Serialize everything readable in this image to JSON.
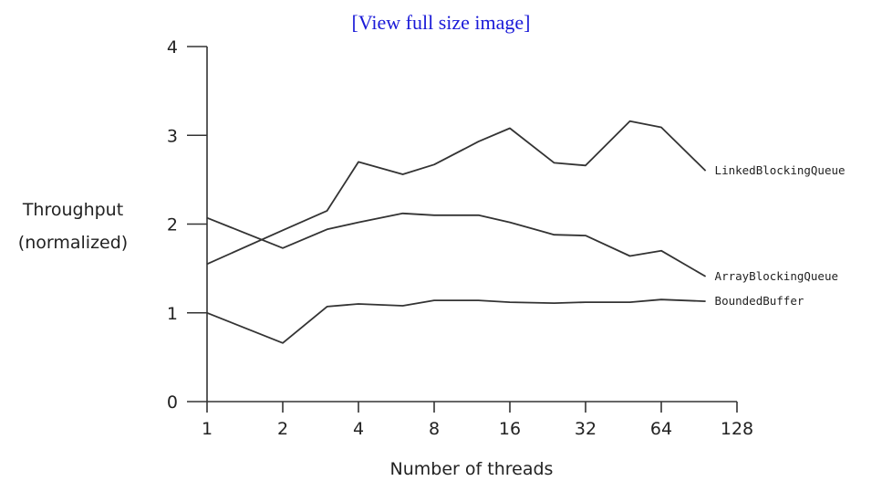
{
  "view_link": "[View full size image]",
  "chart_data": {
    "type": "line",
    "title": "",
    "xlabel": "Number of threads",
    "ylabel": [
      "Throughput",
      "(normalized)"
    ],
    "x_scale": "log2",
    "xlim": [
      1,
      128
    ],
    "ylim": [
      0,
      4
    ],
    "x_ticks": [
      1,
      2,
      4,
      8,
      16,
      32,
      64,
      128
    ],
    "y_ticks": [
      0,
      1,
      2,
      3,
      4
    ],
    "grid": false,
    "legend": "none",
    "series": [
      {
        "name": "LinkedBlockingQueue",
        "x": [
          1,
          2,
          3,
          4,
          6,
          8,
          12,
          16,
          24,
          32,
          48,
          64,
          96
        ],
        "y": [
          1.55,
          1.93,
          2.15,
          2.7,
          2.56,
          2.67,
          2.93,
          3.08,
          2.69,
          2.66,
          3.16,
          3.09,
          2.6
        ]
      },
      {
        "name": "ArrayBlockingQueue",
        "x": [
          1,
          2,
          3,
          4,
          6,
          8,
          12,
          16,
          24,
          32,
          48,
          64,
          96
        ],
        "y": [
          2.07,
          1.73,
          1.94,
          2.02,
          2.12,
          2.1,
          2.1,
          2.02,
          1.88,
          1.87,
          1.64,
          1.7,
          1.41
        ]
      },
      {
        "name": "BoundedBuffer",
        "x": [
          1,
          2,
          3,
          4,
          6,
          8,
          12,
          16,
          24,
          32,
          48,
          64,
          96
        ],
        "y": [
          1.0,
          0.66,
          1.07,
          1.1,
          1.08,
          1.14,
          1.14,
          1.12,
          1.11,
          1.12,
          1.12,
          1.15,
          1.13
        ]
      }
    ]
  }
}
